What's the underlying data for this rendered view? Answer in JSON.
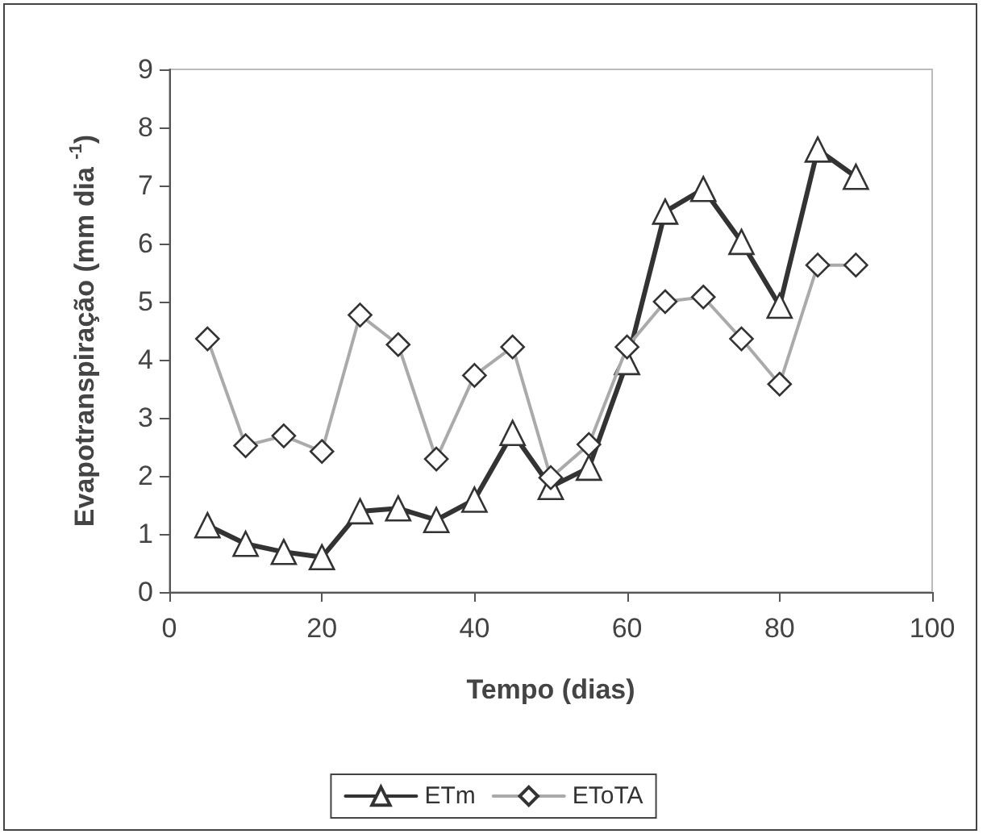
{
  "chart_data": {
    "type": "line",
    "xlabel": "Tempo (dias)",
    "ylabel": "Evapotranspiração (mm dia $^{-1}$)",
    "x": [
      5,
      10,
      15,
      20,
      25,
      30,
      35,
      40,
      45,
      50,
      55,
      60,
      65,
      70,
      75,
      80,
      85,
      90
    ],
    "series": [
      {
        "name": "ETm",
        "color": "#333333",
        "marker": "triangle",
        "values": [
          1.15,
          0.83,
          0.69,
          0.6,
          1.39,
          1.44,
          1.24,
          1.59,
          2.74,
          1.81,
          2.14,
          3.96,
          6.55,
          6.94,
          6.03,
          4.93,
          7.62,
          7.15
        ]
      },
      {
        "name": "EToTA",
        "color": "#aaaaaa",
        "marker": "diamond",
        "values": [
          4.36,
          2.52,
          2.69,
          2.42,
          4.77,
          4.26,
          2.29,
          3.73,
          4.22,
          1.97,
          2.54,
          4.22,
          5.0,
          5.08,
          4.36,
          3.58,
          5.63,
          5.63
        ]
      }
    ],
    "xlim": [
      0,
      100
    ],
    "xticks": [
      0,
      20,
      40,
      60,
      80,
      100
    ],
    "ylim": [
      0,
      9
    ],
    "yticks": [
      0,
      1,
      2,
      3,
      4,
      5,
      6,
      7,
      8,
      9
    ],
    "grid": false,
    "legend": "bottom",
    "line_style": "solid"
  }
}
